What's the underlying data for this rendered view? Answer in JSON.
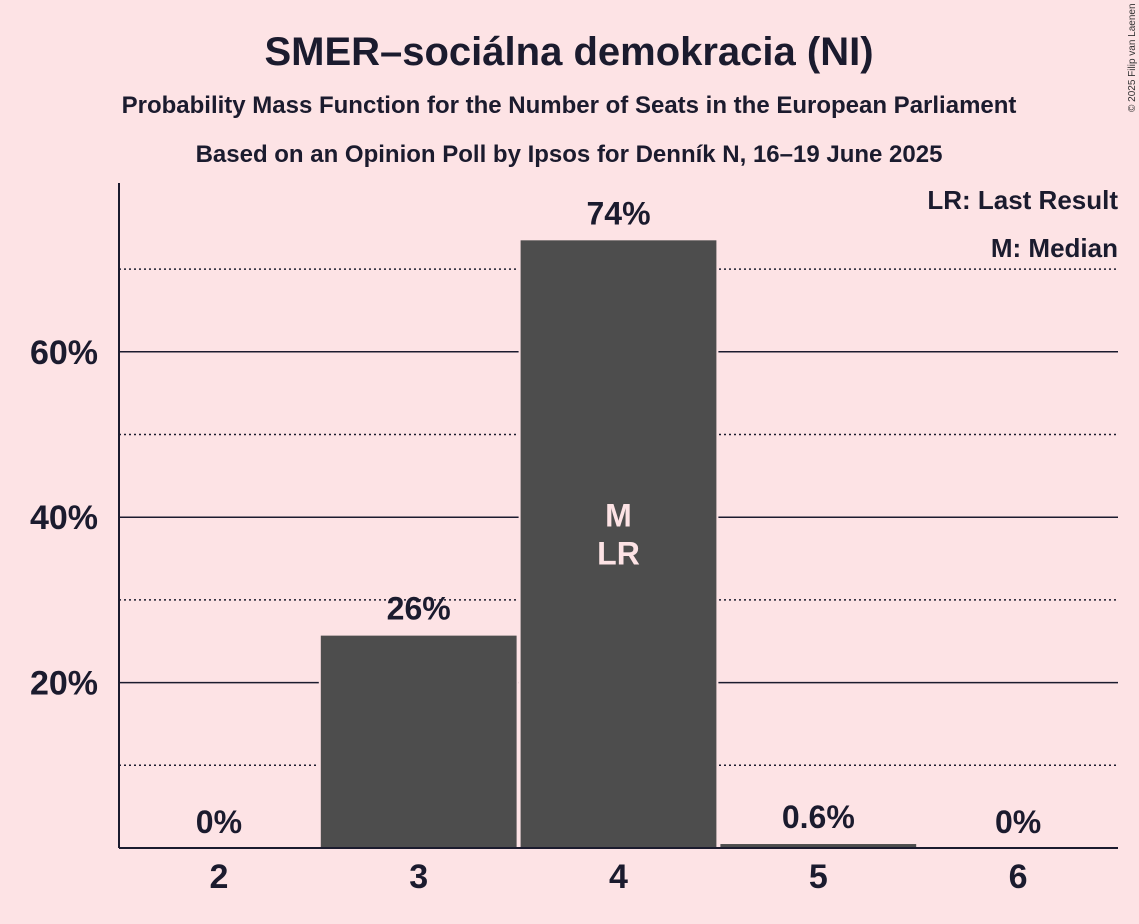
{
  "title": "SMER–sociálna demokracia (NI)",
  "subtitle1": "Probability Mass Function for the Number of Seats in the European Parliament",
  "subtitle2": "Based on an Opinion Poll by Ipsos for Denník N, 16–19 June 2025",
  "copyright": "© 2025 Filip van Laenen",
  "legend": {
    "last_result": "LR: Last Result",
    "median": "M: Median"
  },
  "colors": {
    "background": "#fde3e5",
    "bar": "#4d4d4d",
    "text": "#1b1b2e",
    "inner_label": "#fde3e5"
  },
  "chart_data": {
    "type": "bar",
    "categories": [
      "2",
      "3",
      "4",
      "5",
      "6"
    ],
    "values": [
      0,
      25.8,
      73.6,
      0.6,
      0
    ],
    "value_labels": [
      "0%",
      "26%",
      "74%",
      "0.6%",
      "0%"
    ],
    "inner_labels": [
      "",
      "",
      "M\nLR",
      "",
      ""
    ],
    "ylim": [
      0,
      80
    ],
    "yticks": [
      20,
      40,
      60
    ],
    "ytick_labels": [
      "20%",
      "40%",
      "60%"
    ],
    "minor_gridlines": [
      10,
      30,
      50,
      70
    ],
    "xlabel": "",
    "ylabel": "",
    "grid": true,
    "legend_position": "top-right"
  }
}
